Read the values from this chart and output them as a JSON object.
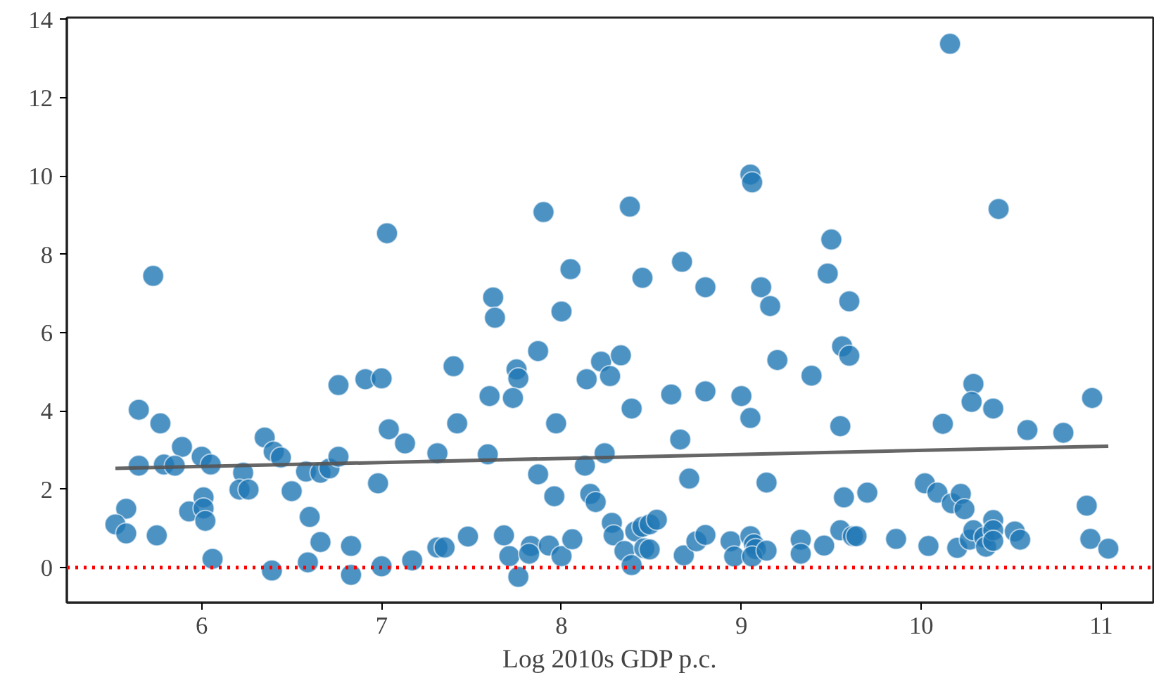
{
  "chart_data": {
    "type": "scatter",
    "xlabel": "Log 2010s GDP p.c.",
    "xlim": [
      5.25,
      11.29
    ],
    "ylim": [
      -0.9,
      14.05
    ],
    "xticks": [
      6,
      7,
      8,
      9,
      10,
      11
    ],
    "yticks": [
      0,
      2,
      4,
      6,
      8,
      10,
      12,
      14
    ],
    "grid": false,
    "series": [
      {
        "marker": "circle",
        "color": "#1f77b4",
        "x": [
          5.73,
          7.03,
          5.65,
          5.77,
          5.89,
          5.65,
          5.79,
          5.85,
          6.0,
          6.05,
          6.35,
          6.4,
          6.44,
          6.23,
          6.21,
          6.26,
          6.5,
          6.58,
          6.66,
          6.71,
          6.76,
          6.76,
          6.91,
          7.0,
          7.04,
          7.13,
          6.98,
          7.31,
          5.58,
          5.52,
          5.58,
          5.75,
          5.93,
          6.01,
          6.01,
          6.02,
          6.06,
          6.39,
          6.6,
          6.59,
          6.66,
          6.83,
          6.83,
          7.0,
          7.17,
          7.31,
          7.4,
          7.42,
          7.59,
          7.6,
          7.62,
          7.63,
          7.75,
          7.76,
          7.73,
          7.87,
          7.97,
          8.0,
          8.05,
          7.87,
          7.96,
          8.13,
          8.14,
          8.22,
          8.27,
          8.33,
          8.24,
          8.16,
          8.19,
          8.39,
          8.45,
          8.67,
          8.8,
          8.61,
          8.66,
          8.71,
          8.8,
          9.0,
          9.05,
          9.11,
          9.16,
          9.2,
          9.14,
          7.35,
          7.48,
          7.68,
          7.71,
          7.83,
          7.82,
          7.76,
          7.93,
          8.0,
          8.06,
          8.28,
          8.29,
          8.35,
          8.39,
          8.41,
          8.45,
          8.49,
          8.53,
          8.46,
          8.49,
          8.68,
          8.75,
          8.8,
          8.94,
          8.96,
          9.05,
          9.07,
          9.08,
          9.06,
          9.14,
          9.33,
          9.33,
          9.05,
          9.06,
          8.38,
          10.16,
          10.43,
          9.5,
          7.9,
          9.48,
          9.6,
          9.56,
          9.6,
          9.39,
          9.55,
          10.12,
          10.29,
          10.28,
          10.4,
          10.59,
          10.79,
          10.95,
          9.57,
          9.7,
          10.02,
          10.09,
          10.17,
          10.22,
          10.24,
          10.92,
          9.46,
          9.55,
          9.62,
          9.64,
          9.86,
          10.04,
          10.2,
          10.27,
          10.29,
          10.35,
          10.36,
          10.4,
          10.4,
          10.4,
          10.52,
          10.55,
          10.94,
          11.04
        ],
        "values": [
          7.45,
          8.54,
          4.03,
          3.68,
          3.08,
          2.6,
          2.63,
          2.6,
          2.83,
          2.63,
          3.32,
          2.96,
          2.81,
          2.42,
          1.99,
          1.99,
          1.95,
          2.45,
          2.42,
          2.53,
          2.83,
          4.66,
          4.81,
          4.83,
          3.53,
          3.17,
          2.15,
          2.92,
          1.5,
          1.1,
          0.87,
          0.82,
          1.43,
          1.79,
          1.51,
          1.19,
          0.22,
          -0.08,
          1.29,
          0.13,
          0.65,
          0.55,
          -0.19,
          0.03,
          0.18,
          0.51,
          5.14,
          3.68,
          2.89,
          4.38,
          6.9,
          6.38,
          5.06,
          4.83,
          4.33,
          5.53,
          3.68,
          6.54,
          7.62,
          2.38,
          1.82,
          2.6,
          4.81,
          5.26,
          4.89,
          5.42,
          2.92,
          1.88,
          1.67,
          4.06,
          7.4,
          7.81,
          7.16,
          4.42,
          3.27,
          2.27,
          4.5,
          4.38,
          3.82,
          7.16,
          6.68,
          5.3,
          2.17,
          0.51,
          0.79,
          0.82,
          0.29,
          0.55,
          0.35,
          -0.24,
          0.56,
          0.29,
          0.72,
          1.14,
          0.82,
          0.42,
          0.06,
          0.92,
          1.04,
          1.1,
          1.22,
          0.49,
          0.46,
          0.31,
          0.67,
          0.83,
          0.67,
          0.28,
          0.8,
          0.59,
          0.47,
          0.28,
          0.43,
          0.71,
          0.35,
          10.04,
          9.84,
          9.22,
          13.38,
          9.16,
          8.38,
          9.08,
          7.51,
          6.8,
          5.65,
          5.41,
          4.9,
          3.61,
          3.67,
          4.69,
          4.23,
          4.06,
          3.51,
          3.44,
          4.33,
          1.79,
          1.91,
          2.15,
          1.91,
          1.64,
          1.88,
          1.49,
          1.58,
          0.56,
          0.95,
          0.8,
          0.8,
          0.73,
          0.55,
          0.5,
          0.71,
          0.95,
          0.77,
          0.53,
          1.21,
          0.95,
          0.68,
          0.92,
          0.71,
          0.73,
          0.48
        ]
      },
      {
        "type": "line",
        "color": "#555555",
        "x": [
          5.52,
          11.04
        ],
        "values": [
          2.53,
          3.1
        ],
        "line_style": "solid"
      }
    ],
    "ref_lines": [
      {
        "axis": "y",
        "value": 0,
        "color": "#ff0000",
        "line_style": "dotted"
      }
    ]
  }
}
